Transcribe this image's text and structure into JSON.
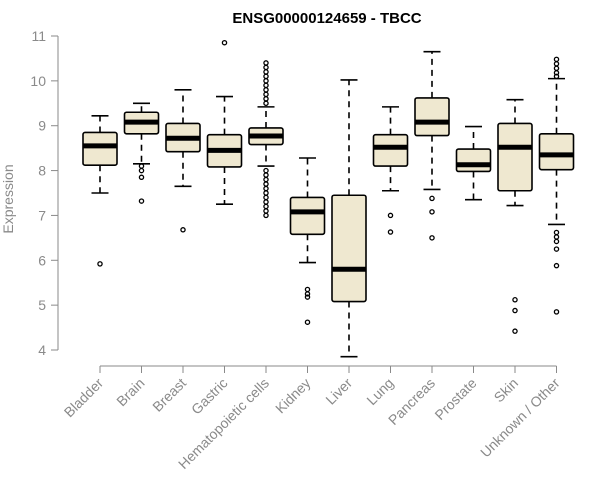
{
  "chart_data": {
    "type": "box",
    "title": "ENSG00000124659 - TBCC",
    "xlabel": "",
    "ylabel": "Expression",
    "ylim": [
      3.8,
      11.05
    ],
    "yticks": [
      4,
      5,
      6,
      7,
      8,
      9,
      10,
      11
    ],
    "box_fill": "#efe8d0",
    "box_stroke": "#000000",
    "axis_color": "#8a8a8a",
    "categories": [
      "Bladder",
      "Brain",
      "Breast",
      "Gastric",
      "Hematopoietic cells",
      "Kidney",
      "Liver",
      "Lung",
      "Pancreas",
      "Prostate",
      "Skin",
      "Unknown / Other"
    ],
    "boxes": [
      {
        "name": "Bladder",
        "whisker_low": 7.5,
        "q1": 8.12,
        "median": 8.55,
        "q3": 8.85,
        "whisker_high": 9.22,
        "outliers": [
          5.92
        ]
      },
      {
        "name": "Brain",
        "whisker_low": 8.15,
        "q1": 8.82,
        "median": 9.08,
        "q3": 9.3,
        "whisker_high": 9.5,
        "outliers": [
          8.1,
          8.0,
          7.85,
          7.32
        ]
      },
      {
        "name": "Breast",
        "whisker_low": 7.65,
        "q1": 8.42,
        "median": 8.72,
        "q3": 9.05,
        "whisker_high": 9.8,
        "outliers": [
          6.68
        ]
      },
      {
        "name": "Gastric",
        "whisker_low": 7.25,
        "q1": 8.08,
        "median": 8.45,
        "q3": 8.8,
        "whisker_high": 9.65,
        "outliers": [
          10.85
        ]
      },
      {
        "name": "Hematopoietic cells",
        "whisker_low": 8.1,
        "q1": 8.58,
        "median": 8.77,
        "q3": 8.95,
        "whisker_high": 9.42,
        "outliers": [
          10.4,
          10.3,
          10.2,
          10.1,
          10.0,
          9.9,
          9.8,
          9.7,
          9.6,
          9.5,
          8.0,
          7.9,
          7.8,
          7.7,
          7.6,
          7.5,
          7.4,
          7.3,
          7.2,
          7.1,
          7.0
        ]
      },
      {
        "name": "Kidney",
        "whisker_low": 5.95,
        "q1": 6.58,
        "median": 7.08,
        "q3": 7.4,
        "whisker_high": 8.28,
        "outliers": [
          5.35,
          5.25,
          5.18,
          4.62
        ]
      },
      {
        "name": "Liver",
        "whisker_low": 3.85,
        "q1": 5.08,
        "median": 5.8,
        "q3": 7.45,
        "whisker_high": 10.02,
        "outliers": []
      },
      {
        "name": "Lung",
        "whisker_low": 7.55,
        "q1": 8.1,
        "median": 8.52,
        "q3": 8.8,
        "whisker_high": 9.42,
        "outliers": [
          7.0,
          6.63
        ]
      },
      {
        "name": "Pancreas",
        "whisker_low": 7.58,
        "q1": 8.78,
        "median": 9.08,
        "q3": 9.62,
        "whisker_high": 10.65,
        "outliers": [
          7.38,
          7.08,
          6.5
        ]
      },
      {
        "name": "Prostate",
        "whisker_low": 7.35,
        "q1": 7.98,
        "median": 8.13,
        "q3": 8.48,
        "whisker_high": 8.98,
        "outliers": []
      },
      {
        "name": "Skin",
        "whisker_low": 7.22,
        "q1": 7.55,
        "median": 8.52,
        "q3": 9.05,
        "whisker_high": 9.58,
        "outliers": [
          5.12,
          4.88,
          4.42
        ]
      },
      {
        "name": "Unknown / Other",
        "whisker_low": 6.8,
        "q1": 8.02,
        "median": 8.35,
        "q3": 8.82,
        "whisker_high": 10.05,
        "outliers": [
          10.48,
          10.38,
          10.28,
          10.18,
          10.1,
          6.62,
          6.52,
          6.42,
          6.25,
          5.88,
          4.85
        ]
      }
    ]
  }
}
